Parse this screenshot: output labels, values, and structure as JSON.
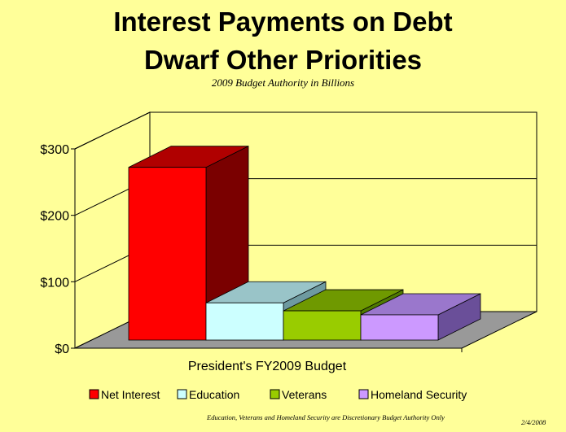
{
  "title_line1": "Interest Payments on Debt",
  "title_line2": "Dwarf Other Priorities",
  "subtitle": "2009 Budget Authority in Billions",
  "footnote": "Education, Veterans and Homeland Security are Discretionary Budget Authority Only",
  "date": "2/4/2008",
  "chart_data": {
    "type": "bar",
    "style": "3d-clustered",
    "categories": [
      "President's FY2009 Budget"
    ],
    "xlabel": "President's FY2009 Budget",
    "ylabel": "",
    "ylim": [
      0,
      300
    ],
    "yticks": [
      "$0",
      "$100",
      "$200",
      "$300"
    ],
    "grid": true,
    "legend_position": "bottom",
    "series": [
      {
        "name": "Net Interest",
        "values": [
          260
        ],
        "color": "#ff0000",
        "side": "#7a0000",
        "top": "#b00000"
      },
      {
        "name": "Education",
        "values": [
          56
        ],
        "color": "#ccffff",
        "side": "#6e9aa0",
        "top": "#99c4c8"
      },
      {
        "name": "Veterans",
        "values": [
          44
        ],
        "color": "#99cc00",
        "side": "#4f7a00",
        "top": "#6f9900"
      },
      {
        "name": "Homeland Security",
        "values": [
          38
        ],
        "color": "#cc99ff",
        "side": "#6a4f99",
        "top": "#9a77cc"
      }
    ]
  }
}
